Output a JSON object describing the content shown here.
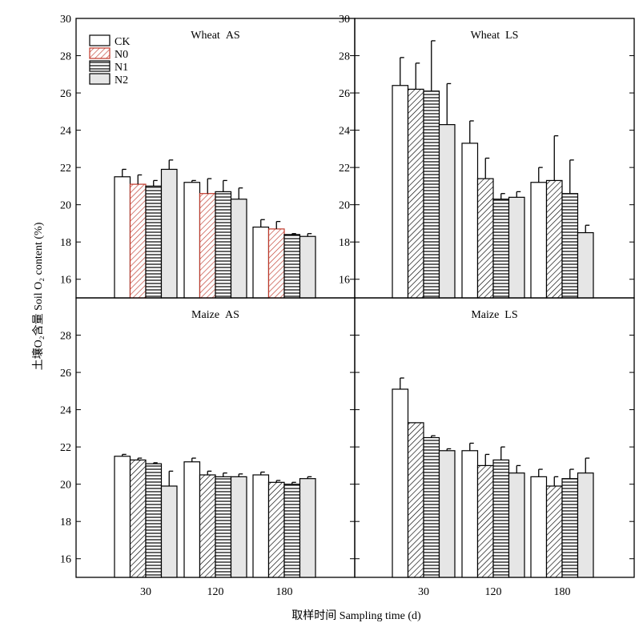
{
  "figure": {
    "y_axis_label": "土壤O₂含量 Soil O₂ content (%)",
    "x_axis_label": "取样时间 Sampling time (d)"
  },
  "legend": {
    "items": [
      {
        "label": "CK",
        "pattern": "plain"
      },
      {
        "label": "N0",
        "pattern": "diagonal"
      },
      {
        "label": "N1",
        "pattern": "horizontal"
      },
      {
        "label": "N2",
        "pattern": "gray"
      }
    ]
  },
  "colors": {
    "bar_fill_plain": "#ffffff",
    "bar_fill_gray": "#e6e6e6",
    "legend_n0_hatch": "#c0392b",
    "line": "#000000"
  },
  "chart_data": [
    {
      "type": "bar",
      "title": "Wheat AS",
      "categories": [
        "30",
        "120",
        "180"
      ],
      "ylim": [
        15,
        30
      ],
      "yticks": [
        16,
        18,
        20,
        22,
        24,
        26,
        28,
        30
      ],
      "series": [
        {
          "name": "CK",
          "values": [
            21.5,
            21.2,
            18.8
          ],
          "errors": [
            0.4,
            0.1,
            0.4
          ]
        },
        {
          "name": "N0",
          "values": [
            21.1,
            20.6,
            18.7
          ],
          "errors": [
            0.5,
            0.8,
            0.4
          ]
        },
        {
          "name": "N1",
          "values": [
            21.0,
            20.7,
            18.4
          ],
          "errors": [
            0.3,
            0.6,
            0.05
          ]
        },
        {
          "name": "N2",
          "values": [
            21.9,
            20.3,
            18.3
          ],
          "errors": [
            0.5,
            0.6,
            0.15
          ]
        }
      ]
    },
    {
      "type": "bar",
      "title": "Wheat LS",
      "categories": [
        "30",
        "120",
        "180"
      ],
      "ylim": [
        15,
        30
      ],
      "yticks": [
        16,
        18,
        20,
        22,
        24,
        26,
        28,
        30
      ],
      "series": [
        {
          "name": "CK",
          "values": [
            26.4,
            23.3,
            21.2
          ],
          "errors": [
            1.5,
            1.2,
            0.8
          ]
        },
        {
          "name": "N0",
          "values": [
            26.2,
            21.4,
            21.3
          ],
          "errors": [
            1.4,
            1.1,
            2.4
          ]
        },
        {
          "name": "N1",
          "values": [
            26.1,
            20.3,
            20.6
          ],
          "errors": [
            2.7,
            0.3,
            1.8
          ]
        },
        {
          "name": "N2",
          "values": [
            24.3,
            20.4,
            18.5
          ],
          "errors": [
            2.2,
            0.3,
            0.4
          ]
        }
      ]
    },
    {
      "type": "bar",
      "title": "Maize AS",
      "categories": [
        "30",
        "120",
        "180"
      ],
      "ylim": [
        15,
        30
      ],
      "yticks": [
        16,
        18,
        20,
        22,
        24,
        26,
        28
      ],
      "series": [
        {
          "name": "CK",
          "values": [
            21.5,
            21.2,
            20.5
          ],
          "errors": [
            0.1,
            0.2,
            0.15
          ]
        },
        {
          "name": "N0",
          "values": [
            21.3,
            20.5,
            20.1
          ],
          "errors": [
            0.1,
            0.2,
            0.1
          ]
        },
        {
          "name": "N1",
          "values": [
            21.1,
            20.4,
            20.0
          ],
          "errors": [
            0.05,
            0.2,
            0.1
          ]
        },
        {
          "name": "N2",
          "values": [
            19.9,
            20.4,
            20.3
          ],
          "errors": [
            0.8,
            0.15,
            0.1
          ]
        }
      ]
    },
    {
      "type": "bar",
      "title": "Maize LS",
      "categories": [
        "30",
        "120",
        "180"
      ],
      "ylim": [
        15,
        30
      ],
      "yticks": [],
      "series": [
        {
          "name": "CK",
          "values": [
            25.1,
            21.8,
            20.4
          ],
          "errors": [
            0.6,
            0.4,
            0.4
          ]
        },
        {
          "name": "N0",
          "values": [
            23.3,
            21.0,
            19.9
          ],
          "errors": [
            0.0,
            0.6,
            0.5
          ]
        },
        {
          "name": "N1",
          "values": [
            22.5,
            21.3,
            20.3
          ],
          "errors": [
            0.1,
            0.7,
            0.5
          ]
        },
        {
          "name": "N2",
          "values": [
            21.8,
            20.6,
            20.6
          ],
          "errors": [
            0.1,
            0.4,
            0.8
          ]
        }
      ]
    }
  ]
}
